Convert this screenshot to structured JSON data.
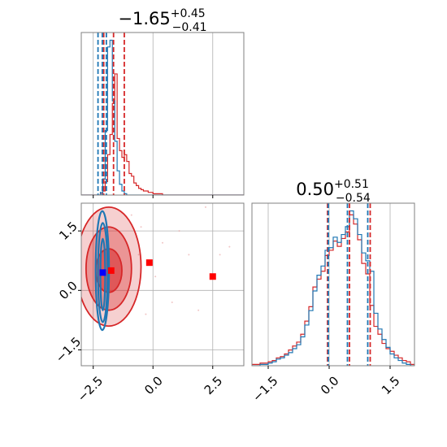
{
  "chart_data": {
    "type": "corner",
    "panels": {
      "hist_param1": {
        "title": {
          "base": "−1.65",
          "sup": "+0.45",
          "sub": "−0.41"
        },
        "xlim": [
          -3.0,
          3.8
        ],
        "red_quantiles": [
          -2.06,
          -1.65,
          -1.2
        ],
        "blue_quantiles": [
          -2.3,
          -2.12,
          -1.95
        ],
        "red_hist": {
          "bin_start": -3.0,
          "bin_width": 0.1,
          "counts": [
            0,
            0,
            0,
            0,
            0,
            0,
            0,
            0,
            1,
            3,
            10,
            30,
            45,
            68,
            90,
            42,
            33,
            28,
            30,
            25,
            16,
            14,
            9,
            7,
            5,
            4,
            3,
            3,
            2,
            2,
            1,
            1,
            1,
            1,
            0,
            0,
            0,
            0,
            0,
            0,
            0,
            0,
            0,
            0,
            0,
            0,
            0,
            0,
            0,
            0,
            0,
            0,
            0,
            0,
            0,
            0,
            0,
            0,
            0,
            0,
            0,
            0,
            0,
            0,
            0,
            0,
            0,
            0
          ]
        },
        "blue_hist": {
          "bin_start": -3.0,
          "bin_width": 0.1,
          "counts": [
            0,
            0,
            0,
            0,
            0,
            0,
            0,
            0,
            2,
            12,
            48,
            110,
            115,
            70,
            40,
            18,
            8,
            3,
            1,
            0,
            0,
            0,
            0,
            0,
            0,
            0,
            0,
            0,
            0,
            0,
            0,
            0,
            0,
            0,
            0,
            0,
            0,
            0,
            0,
            0,
            0,
            0,
            0,
            0,
            0,
            0,
            0,
            0,
            0,
            0,
            0,
            0,
            0,
            0,
            0,
            0,
            0,
            0,
            0,
            0,
            0,
            0,
            0,
            0,
            0,
            0,
            0,
            0
          ]
        }
      },
      "hist_param2": {
        "title": {
          "base": "0.50",
          "sup": "+0.51",
          "sub": "−0.54"
        },
        "xlim": [
          -1.9,
          2.1
        ],
        "xticks": [
          -1.5,
          0.0,
          1.5
        ],
        "xtick_labels": [
          "−1.5",
          "0.0",
          "1.5"
        ],
        "red_quantiles": [
          -0.04,
          0.5,
          1.01
        ],
        "blue_quantiles": [
          -0.02,
          0.45,
          0.95
        ],
        "red_hist": {
          "bin_start": -1.9,
          "bin_width": 0.1,
          "counts": [
            1,
            1,
            2,
            2,
            3,
            4,
            6,
            7,
            9,
            12,
            15,
            18,
            24,
            34,
            45,
            60,
            66,
            72,
            84,
            88,
            95,
            91,
            97,
            102,
            115,
            108,
            96,
            78,
            70,
            46,
            30,
            24,
            17,
            13,
            11,
            8,
            6,
            4,
            3,
            1
          ]
        },
        "blue_hist": {
          "bin_start": -1.9,
          "bin_width": 0.1,
          "counts": [
            0,
            0,
            1,
            1,
            2,
            3,
            5,
            6,
            8,
            10,
            13,
            16,
            22,
            31,
            42,
            57,
            69,
            76,
            88,
            90,
            98,
            94,
            100,
            106,
            118,
            112,
            100,
            86,
            80,
            72,
            40,
            28,
            20,
            14,
            9,
            6,
            4,
            2,
            1,
            0
          ]
        }
      },
      "scatter_2d": {
        "xlim": [
          -3.0,
          3.8
        ],
        "ylim": [
          -1.9,
          2.2
        ],
        "xticks": [
          -2.5,
          0.0,
          2.5
        ],
        "xtick_labels": [
          "−2.5",
          "0.0",
          "2.5"
        ],
        "yticks": [
          -1.5,
          0.0,
          1.5
        ],
        "ytick_labels": [
          "−1.5",
          "0.0",
          "1.5"
        ],
        "red_contours": [
          {
            "cx": -1.85,
            "cy": 0.5,
            "rx": 0.55,
            "ry": 0.55,
            "alpha": 0.55
          },
          {
            "cx": -1.85,
            "cy": 0.55,
            "rx": 0.95,
            "ry": 1.05,
            "alpha": 0.35
          },
          {
            "cx": -1.85,
            "cy": 0.6,
            "rx": 1.35,
            "ry": 1.5,
            "alpha": 0.22
          }
        ],
        "blue_contours": [
          {
            "cx": -2.1,
            "cy": 0.4,
            "rx": 0.1,
            "ry": 0.9
          },
          {
            "cx": -2.1,
            "cy": 0.45,
            "rx": 0.2,
            "ry": 1.25
          },
          {
            "cx": -2.12,
            "cy": 0.5,
            "rx": 0.28,
            "ry": 1.5
          }
        ],
        "red_points": [
          [
            -1.75,
            0.5
          ],
          [
            -0.15,
            0.7
          ],
          [
            2.5,
            0.35
          ]
        ],
        "blue_points": [
          [
            -2.1,
            0.45
          ]
        ],
        "outlier_points": [
          [
            -0.5,
            1.6
          ],
          [
            0.4,
            1.2
          ],
          [
            1.5,
            0.9
          ],
          [
            2.2,
            2.1
          ],
          [
            0.8,
            -0.3
          ],
          [
            -0.9,
            1.9
          ],
          [
            1.1,
            1.5
          ],
          [
            -0.3,
            -0.6
          ],
          [
            2.8,
            0.9
          ],
          [
            0.1,
            0.35
          ],
          [
            -0.6,
            0.9
          ],
          [
            1.9,
            -0.5
          ],
          [
            3.2,
            1.1
          ]
        ]
      }
    },
    "colors": {
      "red": "#d62728",
      "blue": "#1f77b4",
      "frame": "#808080",
      "grid": "#b0b0b0"
    }
  }
}
